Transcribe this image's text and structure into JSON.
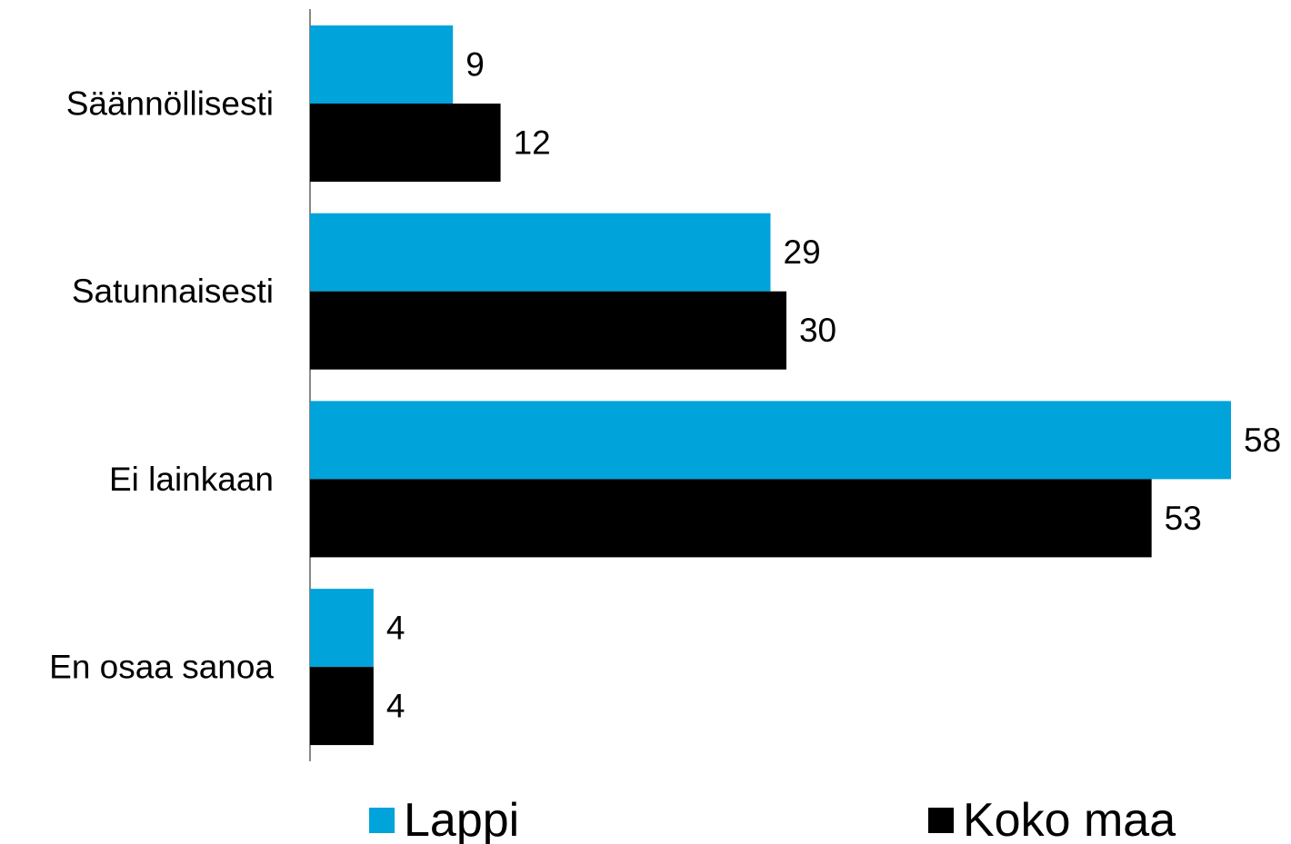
{
  "chart_data": {
    "type": "bar",
    "orientation": "horizontal",
    "categories": [
      "Säännöllisesti",
      "Satunnaisesti",
      "Ei lainkaan",
      "En osaa sanoa"
    ],
    "series": [
      {
        "name": "Lappi",
        "color": "#00a3da",
        "values": [
          9,
          29,
          58,
          4
        ]
      },
      {
        "name": "Koko maa",
        "color": "#000000",
        "values": [
          12,
          30,
          53,
          4
        ]
      }
    ],
    "title": "",
    "xlabel": "",
    "ylabel": "",
    "xlim": [
      0,
      58
    ],
    "grid": false,
    "legend": "bottom",
    "data_labels": true
  }
}
